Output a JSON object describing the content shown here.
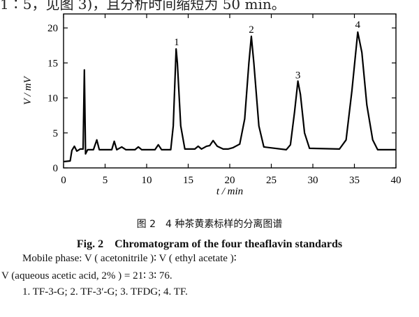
{
  "page": {
    "top_text_cut": "1∶5，见图 3)，且分析时间缩短为 50 min。"
  },
  "chart_data": {
    "type": "line",
    "xlabel": "t / min",
    "ylabel": "V / mV",
    "xlim": [
      0,
      40
    ],
    "ylim": [
      0,
      22
    ],
    "xticks": [
      0,
      5,
      10,
      15,
      20,
      25,
      30,
      35,
      40
    ],
    "yticks": [
      0,
      5,
      10,
      15,
      20
    ],
    "grid": false,
    "baseline": 2.6,
    "points": [
      [
        0,
        0.9
      ],
      [
        0.8,
        1.0
      ],
      [
        1.0,
        2.5
      ],
      [
        1.3,
        3.1
      ],
      [
        1.6,
        2.4
      ],
      [
        2.0,
        2.7
      ],
      [
        2.35,
        2.7
      ],
      [
        2.5,
        14.0
      ],
      [
        2.65,
        2.0
      ],
      [
        2.9,
        2.6
      ],
      [
        3.6,
        2.6
      ],
      [
        4.0,
        4.0
      ],
      [
        4.3,
        2.6
      ],
      [
        5.8,
        2.6
      ],
      [
        6.1,
        3.8
      ],
      [
        6.4,
        2.6
      ],
      [
        7.0,
        3.0
      ],
      [
        7.5,
        2.6
      ],
      [
        8.6,
        2.6
      ],
      [
        9.0,
        3.0
      ],
      [
        9.4,
        2.6
      ],
      [
        11.0,
        2.6
      ],
      [
        11.4,
        3.3
      ],
      [
        11.8,
        2.6
      ],
      [
        12.9,
        2.6
      ],
      [
        13.2,
        6.0
      ],
      [
        13.55,
        17.0
      ],
      [
        13.7,
        15.0
      ],
      [
        14.1,
        6.0
      ],
      [
        14.6,
        2.7
      ],
      [
        15.8,
        2.7
      ],
      [
        16.2,
        3.1
      ],
      [
        16.6,
        2.7
      ],
      [
        17.2,
        3.1
      ],
      [
        17.6,
        3.2
      ],
      [
        18.0,
        3.9
      ],
      [
        18.5,
        3.1
      ],
      [
        19.2,
        2.7
      ],
      [
        19.8,
        2.7
      ],
      [
        20.4,
        2.9
      ],
      [
        21.2,
        3.4
      ],
      [
        21.8,
        7.0
      ],
      [
        22.3,
        15.0
      ],
      [
        22.6,
        18.8
      ],
      [
        22.9,
        15.0
      ],
      [
        23.5,
        6.0
      ],
      [
        24.1,
        3.0
      ],
      [
        26.8,
        2.6
      ],
      [
        27.3,
        3.3
      ],
      [
        27.8,
        8.0
      ],
      [
        28.2,
        12.4
      ],
      [
        28.5,
        10.5
      ],
      [
        29.0,
        5.0
      ],
      [
        29.6,
        2.8
      ],
      [
        33.2,
        2.7
      ],
      [
        34.0,
        4.0
      ],
      [
        34.7,
        11.0
      ],
      [
        35.4,
        19.4
      ],
      [
        35.9,
        16.5
      ],
      [
        36.5,
        9.0
      ],
      [
        37.2,
        4.0
      ],
      [
        37.8,
        2.6
      ],
      [
        38.2,
        2.6
      ],
      [
        40,
        2.6
      ]
    ],
    "annotations": [
      {
        "text": "1",
        "x": 13.6,
        "y": 17.3
      },
      {
        "text": "2",
        "x": 22.6,
        "y": 19.1
      },
      {
        "text": "3",
        "x": 28.2,
        "y": 12.6
      },
      {
        "text": "4",
        "x": 35.4,
        "y": 19.8
      }
    ]
  },
  "caption": {
    "cn": "图 2　4 种茶黄素标样的分离图谱",
    "en": "Fig. 2　Chromatogram of the four theaflavin standards"
  },
  "notes": {
    "line1": "Mobile phase:  V ( acetonitrile )∶  V ( ethyl  acetate )∶",
    "line2": "V (aqueous acetic acid, 2% ) =  21∶ 3∶ 76.",
    "line3": "1. TF-3-G;  2. TF-3′-G;  3. TFDG;  4. TF."
  }
}
